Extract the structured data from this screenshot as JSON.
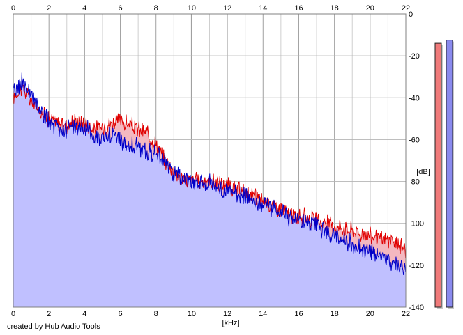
{
  "credit": "created by Hub Audio Tools",
  "chart_data": {
    "type": "area",
    "xlabel": "[kHz]",
    "ylabel": "[dB]",
    "xlim": [
      0,
      22
    ],
    "ylim": [
      -140,
      0
    ],
    "x_ticks": [
      "0",
      "2",
      "4",
      "6",
      "8",
      "10",
      "12",
      "14",
      "16",
      "18",
      "20",
      "22"
    ],
    "y_ticks": [
      "0",
      "-20",
      "-40",
      "-60",
      "-80",
      "-100",
      "-120",
      "-140"
    ],
    "grid": true,
    "colors": {
      "red": "#e00000",
      "blue": "#0000c8",
      "red_fill": "#f4b8c0",
      "blue_fill": "#c0c0ff"
    },
    "x": [
      0,
      0.5,
      1,
      1.5,
      2,
      2.5,
      3,
      3.5,
      4,
      4.5,
      5,
      5.5,
      6,
      6.5,
      7,
      7.5,
      8,
      8.5,
      9,
      9.5,
      10,
      10.5,
      11,
      11.5,
      12,
      12.5,
      13,
      13.5,
      14,
      14.5,
      15,
      15.5,
      16,
      16.5,
      17,
      17.5,
      18,
      18.5,
      19,
      19.5,
      20,
      20.5,
      21,
      21.5,
      22
    ],
    "series": [
      {
        "values": [
          -40,
          -35,
          -42,
          -46,
          -50,
          -52,
          -53,
          -51,
          -52,
          -55,
          -54,
          -52,
          -51,
          -53,
          -55,
          -57,
          -62,
          -70,
          -75,
          -79,
          -79,
          -80,
          -80,
          -81,
          -82,
          -84,
          -85,
          -87,
          -89,
          -91,
          -93,
          -96,
          -97,
          -97,
          -99,
          -100,
          -101,
          -102,
          -103,
          -105,
          -106,
          -107,
          -108,
          -110,
          -112
        ]
      },
      {
        "values": [
          -38,
          -32,
          -40,
          -46,
          -52,
          -55,
          -55,
          -54,
          -55,
          -58,
          -59,
          -58,
          -60,
          -62,
          -64,
          -66,
          -66,
          -71,
          -76,
          -78,
          -80,
          -80,
          -81,
          -83,
          -85,
          -86,
          -87,
          -88,
          -91,
          -92,
          -94,
          -97,
          -99,
          -100,
          -102,
          -104,
          -106,
          -108,
          -110,
          -112,
          -114,
          -115,
          -117,
          -119,
          -121
        ]
      }
    ],
    "meters": [
      {
        "level_db": -14
      },
      {
        "level_db": -12.5
      }
    ]
  }
}
